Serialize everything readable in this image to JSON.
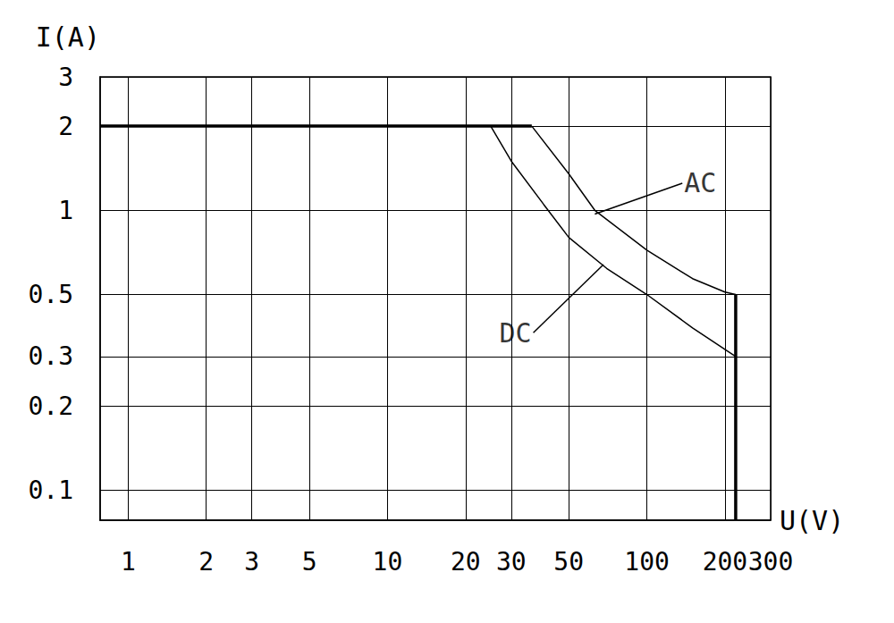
{
  "chart_data": {
    "type": "line",
    "log": true,
    "grid": true,
    "x_label": "U(V)",
    "y_label": "I(A)",
    "xlim": [
      0.78,
      300
    ],
    "ylim": [
      0.078,
      3
    ],
    "xticks": [
      1,
      2,
      3,
      5,
      10,
      20,
      30,
      50,
      100,
      200,
      300
    ],
    "yticks": [
      0.1,
      0.2,
      0.3,
      0.5,
      1,
      2,
      3
    ],
    "series": [
      {
        "color": "#000000",
        "line_style": "bold",
        "x": [
          0.78,
          36
        ],
        "values": [
          2,
          2
        ]
      },
      {
        "color": "#000000",
        "line_style": "bold",
        "x": [
          220,
          220
        ],
        "values": [
          0.5,
          0.078
        ]
      },
      {
        "color": "#000000",
        "line_style": "solid",
        "x": [
          36,
          50,
          63,
          100,
          150,
          200,
          220
        ],
        "values": [
          2,
          1.35,
          1.0,
          0.72,
          0.57,
          0.51,
          0.5
        ]
      },
      {
        "color": "#000000",
        "line_style": "solid",
        "x": [
          25,
          30,
          40,
          50,
          70,
          100,
          150,
          220
        ],
        "values": [
          2,
          1.5,
          1.05,
          0.8,
          0.62,
          0.5,
          0.38,
          0.3
        ]
      }
    ],
    "annotations": [
      {
        "text": "AC",
        "x": 137,
        "y": 1.25,
        "point_x": 63,
        "point_y": 0.97
      },
      {
        "text": "DC",
        "x": 36.5,
        "y": 0.365,
        "point_x": 68,
        "point_y": 0.64
      }
    ]
  }
}
